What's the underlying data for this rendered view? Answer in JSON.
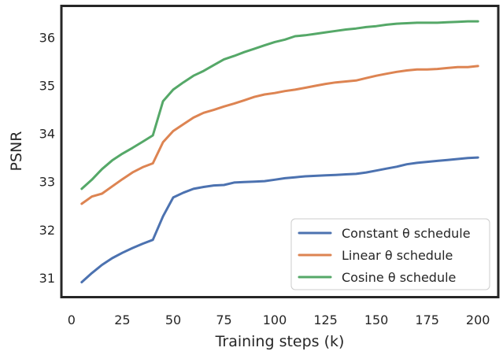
{
  "chart_data": {
    "type": "line",
    "xlabel": "Training steps (k)",
    "ylabel": "PSNR",
    "xlim": [
      -5,
      210
    ],
    "ylim": [
      30.6,
      36.65
    ],
    "xticks": [
      0,
      25,
      50,
      75,
      100,
      125,
      150,
      175,
      200
    ],
    "yticks": [
      31,
      32,
      33,
      34,
      35,
      36
    ],
    "grid": false,
    "legend_position": "bottom-right",
    "x": [
      5,
      10,
      15,
      20,
      25,
      30,
      35,
      40,
      45,
      50,
      55,
      60,
      65,
      70,
      75,
      80,
      85,
      90,
      95,
      100,
      105,
      110,
      115,
      120,
      125,
      130,
      135,
      140,
      145,
      150,
      155,
      160,
      165,
      170,
      175,
      180,
      185,
      190,
      195,
      200
    ],
    "series": [
      {
        "name": "Constant θ schedule",
        "color": "#4c72b0",
        "values": [
          30.91,
          31.1,
          31.27,
          31.41,
          31.52,
          31.62,
          31.71,
          31.79,
          32.28,
          32.67,
          32.77,
          32.85,
          32.89,
          32.92,
          32.93,
          32.98,
          32.99,
          33.0,
          33.01,
          33.04,
          33.07,
          33.09,
          33.11,
          33.12,
          33.13,
          33.14,
          33.15,
          33.16,
          33.19,
          33.23,
          33.27,
          33.31,
          33.36,
          33.39,
          33.41,
          33.43,
          33.45,
          33.47,
          33.49,
          33.5
        ]
      },
      {
        "name": "Linear θ schedule",
        "color": "#dd8452",
        "values": [
          32.54,
          32.69,
          32.75,
          32.9,
          33.05,
          33.19,
          33.3,
          33.38,
          33.82,
          34.05,
          34.19,
          34.33,
          34.43,
          34.49,
          34.56,
          34.62,
          34.69,
          34.76,
          34.81,
          34.84,
          34.88,
          34.91,
          34.95,
          34.99,
          35.03,
          35.06,
          35.08,
          35.1,
          35.15,
          35.2,
          35.24,
          35.28,
          35.31,
          35.33,
          35.33,
          35.34,
          35.36,
          35.38,
          35.38,
          35.4
        ]
      },
      {
        "name": "Cosine θ schedule",
        "color": "#55a868",
        "values": [
          32.85,
          33.04,
          33.26,
          33.44,
          33.58,
          33.7,
          33.83,
          33.96,
          34.67,
          34.91,
          35.06,
          35.2,
          35.3,
          35.42,
          35.54,
          35.61,
          35.69,
          35.76,
          35.83,
          35.9,
          35.95,
          36.02,
          36.04,
          36.07,
          36.1,
          36.13,
          36.16,
          36.18,
          36.21,
          36.23,
          36.26,
          36.28,
          36.29,
          36.3,
          36.3,
          36.3,
          36.31,
          36.32,
          36.33,
          36.33
        ]
      }
    ]
  }
}
